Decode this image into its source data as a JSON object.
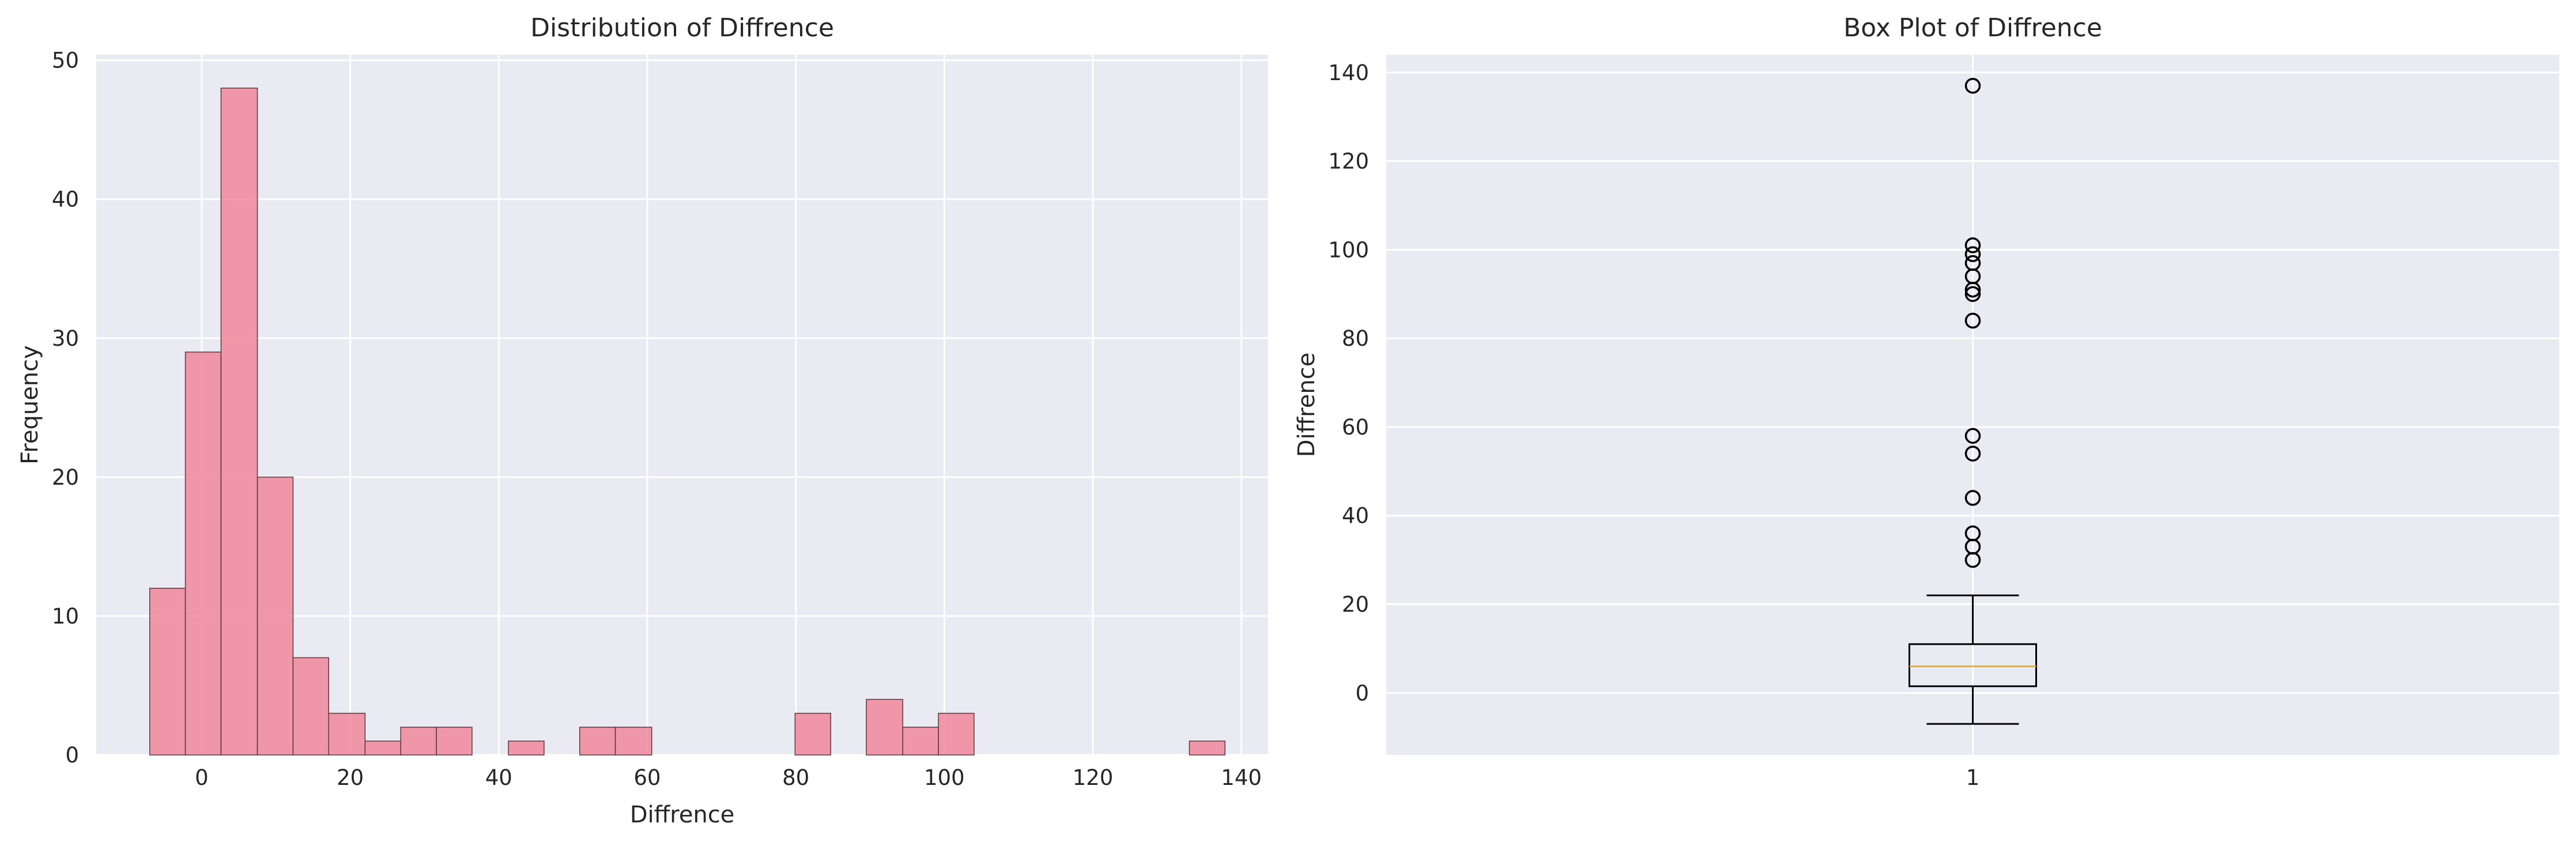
{
  "chart_data": [
    {
      "type": "bar",
      "title": "Distribution of Diffrence",
      "xlabel": "Diffrence",
      "ylabel": "Frequency",
      "xlim": [
        -14.2,
        143.6
      ],
      "ylim": [
        0,
        50.4
      ],
      "xticks": [
        "0",
        "20",
        "40",
        "60",
        "80",
        "100",
        "120",
        "140"
      ],
      "xtick_values": [
        0,
        20,
        40,
        60,
        80,
        100,
        120,
        140
      ],
      "yticks": [
        "0",
        "10",
        "20",
        "30",
        "40",
        "50"
      ],
      "ytick_values": [
        0,
        10,
        20,
        30,
        40,
        50
      ],
      "grid": true,
      "bar_color": "#f0879b",
      "edge_color": "#5a3a40",
      "bins": [
        {
          "x0": -7.0,
          "x1": -2.2,
          "count": 12
        },
        {
          "x0": -2.2,
          "x1": 2.6,
          "count": 29
        },
        {
          "x0": 2.6,
          "x1": 7.5,
          "count": 48
        },
        {
          "x0": 7.5,
          "x1": 12.3,
          "count": 20
        },
        {
          "x0": 12.3,
          "x1": 17.1,
          "count": 7
        },
        {
          "x0": 17.1,
          "x1": 22.0,
          "count": 3
        },
        {
          "x0": 22.0,
          "x1": 26.8,
          "count": 1
        },
        {
          "x0": 26.8,
          "x1": 31.6,
          "count": 2
        },
        {
          "x0": 31.6,
          "x1": 36.4,
          "count": 2
        },
        {
          "x0": 36.4,
          "x1": 41.3,
          "count": 0
        },
        {
          "x0": 41.3,
          "x1": 46.1,
          "count": 1
        },
        {
          "x0": 46.1,
          "x1": 50.9,
          "count": 0
        },
        {
          "x0": 50.9,
          "x1": 55.7,
          "count": 2
        },
        {
          "x0": 55.7,
          "x1": 60.6,
          "count": 2
        },
        {
          "x0": 60.6,
          "x1": 65.4,
          "count": 0
        },
        {
          "x0": 65.4,
          "x1": 70.2,
          "count": 0
        },
        {
          "x0": 70.2,
          "x1": 75.1,
          "count": 0
        },
        {
          "x0": 75.1,
          "x1": 79.9,
          "count": 0
        },
        {
          "x0": 79.9,
          "x1": 84.7,
          "count": 3
        },
        {
          "x0": 84.7,
          "x1": 89.5,
          "count": 0
        },
        {
          "x0": 89.5,
          "x1": 94.4,
          "count": 4
        },
        {
          "x0": 94.4,
          "x1": 99.2,
          "count": 2
        },
        {
          "x0": 99.2,
          "x1": 104.0,
          "count": 3
        },
        {
          "x0": 104.0,
          "x1": 108.9,
          "count": 0
        },
        {
          "x0": 108.9,
          "x1": 113.7,
          "count": 0
        },
        {
          "x0": 113.7,
          "x1": 118.5,
          "count": 0
        },
        {
          "x0": 118.5,
          "x1": 123.3,
          "count": 0
        },
        {
          "x0": 123.3,
          "x1": 128.2,
          "count": 0
        },
        {
          "x0": 128.2,
          "x1": 133.0,
          "count": 0
        },
        {
          "x0": 133.0,
          "x1": 137.8,
          "count": 1
        }
      ]
    },
    {
      "type": "box",
      "title": "Box Plot of Diffrence",
      "xlabel": "",
      "ylabel": "Diffrence",
      "xticks": [
        "1"
      ],
      "ylim": [
        -14,
        144
      ],
      "yticks": [
        "0",
        "20",
        "40",
        "60",
        "80",
        "100",
        "120",
        "140"
      ],
      "ytick_values": [
        0,
        20,
        40,
        60,
        80,
        100,
        120,
        140
      ],
      "grid": true,
      "whisker_low": -7,
      "q1": 1.5,
      "median": 6,
      "q3": 11,
      "whisker_high": 22,
      "median_color": "#e5ae38",
      "outliers": [
        30,
        33,
        36,
        44,
        54,
        58,
        84,
        90,
        91,
        94,
        97,
        99,
        101,
        137
      ]
    }
  ]
}
